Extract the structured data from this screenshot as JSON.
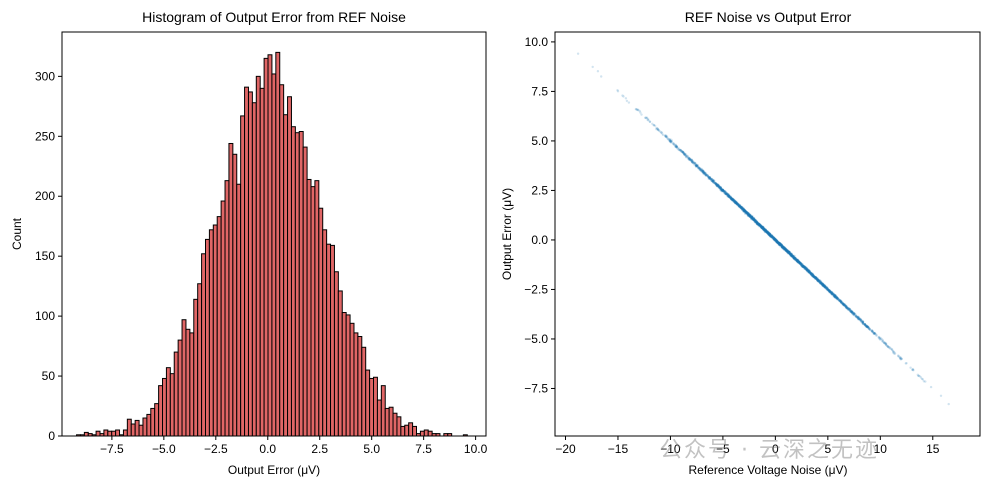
{
  "chart_data": [
    {
      "type": "bar",
      "subtype": "histogram",
      "title": "Histogram of Output Error from REF Noise",
      "xlabel": "Output Error (μV)",
      "ylabel": "Count",
      "xlim": [
        -9.9,
        10.5
      ],
      "ylim": [
        0,
        337
      ],
      "bin_range": [
        -9.2,
        9.6
      ],
      "xticks": [
        -7.5,
        -5.0,
        -2.5,
        0.0,
        2.5,
        5.0,
        7.5,
        10.0
      ],
      "xtick_labels": [
        "−7.5",
        "−5.0",
        "−2.5",
        "0.0",
        "2.5",
        "5.0",
        "7.5",
        "10.0"
      ],
      "yticks": [
        0,
        50,
        100,
        150,
        200,
        250,
        300
      ],
      "ytick_labels": [
        "0",
        "50",
        "100",
        "150",
        "200",
        "250",
        "300"
      ],
      "counts": [
        1,
        1,
        3,
        2,
        1,
        4,
        2,
        5,
        4,
        4,
        5,
        1,
        5,
        14,
        10,
        13,
        9,
        15,
        18,
        23,
        27,
        42,
        48,
        57,
        52,
        70,
        80,
        97,
        89,
        86,
        114,
        127,
        152,
        164,
        172,
        176,
        183,
        196,
        213,
        244,
        235,
        210,
        267,
        291,
        287,
        278,
        300,
        290,
        315,
        318,
        302,
        320,
        293,
        268,
        283,
        258,
        253,
        254,
        241,
        214,
        208,
        213,
        190,
        172,
        160,
        159,
        137,
        121,
        103,
        101,
        94,
        86,
        83,
        74,
        55,
        48,
        49,
        30,
        42,
        23,
        24,
        19,
        16,
        8,
        9,
        11,
        8,
        2,
        4,
        5,
        4,
        2,
        2,
        0,
        2,
        2,
        0,
        0,
        0,
        1
      ],
      "bar_color": "#e06666",
      "edge_color": "#000000"
    },
    {
      "type": "scatter",
      "title": "REF Noise vs Output Error",
      "xlabel": "Reference Voltage Noise (μV)",
      "ylabel": "Output Error (μV)",
      "xlim": [
        -21.0,
        19.5
      ],
      "ylim": [
        -9.9,
        10.5
      ],
      "xticks": [
        -20,
        -15,
        -10,
        -5,
        0,
        5,
        10,
        15
      ],
      "xtick_labels": [
        "−20",
        "−15",
        "−10",
        "−5",
        "0",
        "5",
        "10",
        "15"
      ],
      "yticks": [
        -7.5,
        -5.0,
        -2.5,
        0.0,
        2.5,
        5.0,
        7.5,
        10.0
      ],
      "ytick_labels": [
        "−7.5",
        "−5.0",
        "−2.5",
        "0.0",
        "2.5",
        "5.0",
        "7.5",
        "10.0"
      ],
      "relation": {
        "slope": -0.5,
        "intercept": 0
      },
      "x_distribution": {
        "mean": 0,
        "std": 5,
        "min": -19,
        "max": 18.2
      },
      "n_points": 10000,
      "point_color": "#1f77b4",
      "alpha": 0.2
    }
  ],
  "watermark": "公众号 · 云深之无迹"
}
